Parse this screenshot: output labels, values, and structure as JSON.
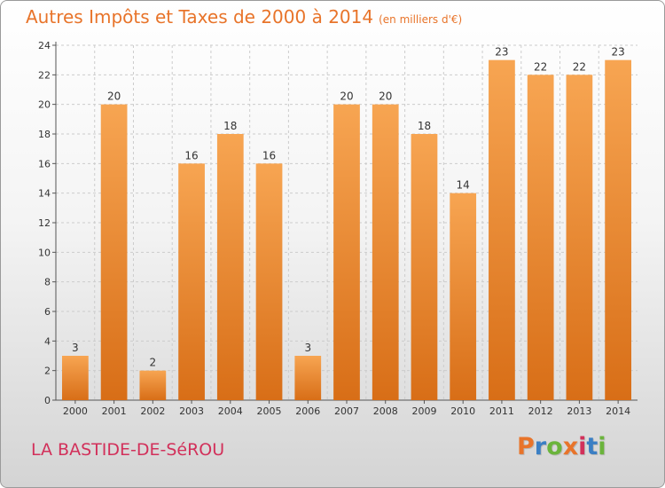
{
  "header": {
    "title": "Autres Impôts et Taxes de 2000 à 2014",
    "unit": "(en milliers d'€)"
  },
  "footer": {
    "town": "LA BASTIDE-DE-SéROU",
    "brand": "Proxiti",
    "brand_letters": [
      {
        "ch": "P",
        "color": "#e8742a"
      },
      {
        "ch": "r",
        "color": "#3b7fc4"
      },
      {
        "ch": "o",
        "color": "#6bb43c"
      },
      {
        "ch": "x",
        "color": "#e8742a"
      },
      {
        "ch": "i",
        "color": "#d2305a"
      },
      {
        "ch": "t",
        "color": "#3b7fc4"
      },
      {
        "ch": "i",
        "color": "#6bb43c"
      }
    ]
  },
  "colors": {
    "bar_light": "#f7a552",
    "bar_dark": "#d86e17",
    "axis": "#555555",
    "grid": "#cccccc"
  },
  "chart_data": {
    "type": "bar",
    "title": "Autres Impôts et Taxes de 2000 à 2014",
    "subtitle": "(en milliers d'€)",
    "categories": [
      "2000",
      "2001",
      "2002",
      "2003",
      "2004",
      "2005",
      "2006",
      "2007",
      "2008",
      "2009",
      "2010",
      "2011",
      "2012",
      "2013",
      "2014"
    ],
    "values": [
      3,
      20,
      2,
      16,
      18,
      16,
      3,
      20,
      20,
      18,
      14,
      23,
      22,
      22,
      23
    ],
    "ylim": [
      0,
      24
    ],
    "yticks": [
      0,
      2,
      4,
      6,
      8,
      10,
      12,
      14,
      16,
      18,
      20,
      22,
      24
    ],
    "grid": true,
    "data_labels": true
  }
}
